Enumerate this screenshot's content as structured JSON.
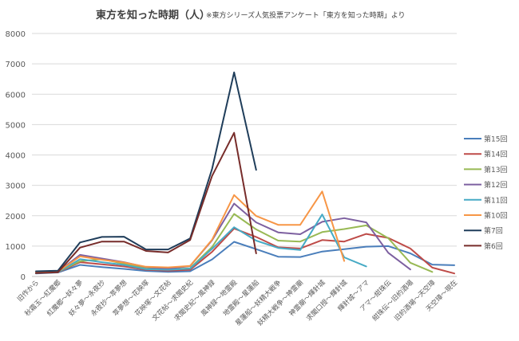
{
  "chart_data": {
    "type": "line",
    "title": "東方を知った時期（人）",
    "subtitle": "※東方シリーズ人気投票アンケート「東方を知った時期」より",
    "xlabel": "",
    "ylabel": "",
    "ylim": [
      0,
      8000
    ],
    "yticks": [
      0,
      1000,
      2000,
      3000,
      4000,
      5000,
      6000,
      7000,
      8000
    ],
    "grid": true,
    "legend_position": "right",
    "categories": [
      "旧作から",
      "秋霜玉～紅魔郷",
      "紅魔郷～妖々夢",
      "妖々夢～永夜抄",
      "永夜抄～萃夢想",
      "萃夢想～花映塚",
      "花映塚～文花帖",
      "文花帖～求聞史紀",
      "求聞史紀～風神録",
      "風神録～地霊殿",
      "地霊殿～星蓮船",
      "星蓮船～妖精大戦争",
      "妖精大戦争～神霊廟",
      "神霊廟～輝針城",
      "求聞口授～輝針城",
      "輝針城～アマ",
      "アマ～紺珠伝",
      "紺珠伝～旧約酒場",
      "旧約酒場～天空璋",
      "天空璋～現在"
    ],
    "series": [
      {
        "name": "第15回",
        "color": "#4a7ebb",
        "values": [
          100,
          130,
          380,
          310,
          250,
          180,
          150,
          170,
          560,
          1140,
          900,
          650,
          640,
          820,
          900,
          980,
          1000,
          760,
          390,
          370
        ]
      },
      {
        "name": "第14回",
        "color": "#be4b48",
        "values": [
          110,
          140,
          470,
          400,
          330,
          220,
          190,
          220,
          810,
          1580,
          1300,
          960,
          920,
          1200,
          1150,
          1400,
          1270,
          920,
          290,
          100
        ]
      },
      {
        "name": "第13回",
        "color": "#98b954",
        "values": [
          120,
          150,
          500,
          570,
          420,
          260,
          230,
          270,
          970,
          2060,
          1550,
          1180,
          1150,
          1460,
          1560,
          1680,
          1260,
          450,
          150,
          null
        ]
      },
      {
        "name": "第12回",
        "color": "#7d60a0",
        "values": [
          130,
          160,
          710,
          590,
          470,
          310,
          260,
          340,
          1190,
          2400,
          1780,
          1450,
          1390,
          1800,
          1920,
          1780,
          780,
          230,
          null,
          null
        ]
      },
      {
        "name": "第11回",
        "color": "#46aac5",
        "values": [
          110,
          140,
          570,
          470,
          380,
          240,
          220,
          260,
          910,
          1620,
          1180,
          940,
          870,
          2040,
          630,
          330,
          null,
          null,
          null,
          null
        ]
      },
      {
        "name": "第10回",
        "color": "#f79646",
        "values": [
          130,
          160,
          660,
          550,
          460,
          320,
          300,
          350,
          1210,
          2680,
          1990,
          1700,
          1700,
          2800,
          510,
          null,
          null,
          null,
          null,
          null
        ]
      },
      {
        "name": "第7回",
        "color": "#1f3d5a",
        "values": [
          170,
          190,
          1120,
          1300,
          1310,
          890,
          890,
          1250,
          3540,
          6720,
          3510,
          null,
          null,
          null,
          null,
          null,
          null,
          null,
          null,
          null
        ]
      },
      {
        "name": "第6回",
        "color": "#772c2a",
        "values": [
          110,
          140,
          950,
          1150,
          1150,
          840,
          790,
          1200,
          3310,
          4730,
          760,
          null,
          null,
          null,
          null,
          null,
          null,
          null,
          null,
          null
        ]
      }
    ]
  }
}
